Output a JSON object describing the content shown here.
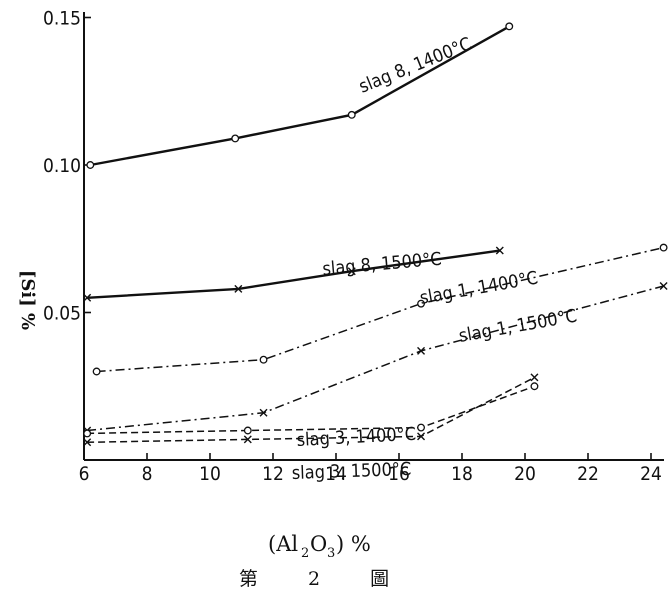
{
  "chart_data": {
    "type": "line",
    "title": "",
    "xlabel": "(Al2O3) %",
    "ylabel": "[Si] %",
    "caption": "第 2 圖",
    "xlim": [
      6,
      24.5
    ],
    "ylim": [
      0,
      0.15
    ],
    "x_ticks": [
      6,
      8,
      10,
      12,
      14,
      16,
      18,
      20,
      22,
      24
    ],
    "y_ticks": [
      0.05,
      0.1,
      0.15
    ],
    "y_tick_labels": [
      "0.05",
      "0.10",
      "0.15"
    ],
    "grid": false,
    "series": [
      {
        "name": "slag 8, 1400°C",
        "marker": "o",
        "style": "solid",
        "x": [
          6.2,
          10.8,
          14.5,
          19.5
        ],
        "y": [
          0.1,
          0.109,
          0.117,
          0.147
        ]
      },
      {
        "name": "slag 8, 1500°C",
        "marker": "x",
        "style": "solid",
        "x": [
          6.1,
          10.9,
          14.5,
          19.2
        ],
        "y": [
          0.055,
          0.058,
          0.064,
          0.071
        ]
      },
      {
        "name": "slag 1, 1400°C",
        "marker": "o",
        "style": "dashdot",
        "x": [
          6.4,
          11.7,
          16.7,
          24.4
        ],
        "y": [
          0.03,
          0.034,
          0.053,
          0.072
        ]
      },
      {
        "name": "slag 1, 1500°C",
        "marker": "x",
        "style": "dashdot",
        "x": [
          6.1,
          11.7,
          16.7,
          24.4
        ],
        "y": [
          0.01,
          0.016,
          0.037,
          0.059
        ]
      },
      {
        "name": "slag 3, 1400°C",
        "marker": "o",
        "style": "dashed",
        "x": [
          6.1,
          11.2,
          16.7,
          20.3
        ],
        "y": [
          0.009,
          0.01,
          0.011,
          0.025
        ]
      },
      {
        "name": "slag 3, 1500°C",
        "marker": "x",
        "style": "dashed",
        "x": [
          6.1,
          11.2,
          16.7,
          20.3
        ],
        "y": [
          0.006,
          0.007,
          0.008,
          0.028
        ]
      }
    ]
  }
}
